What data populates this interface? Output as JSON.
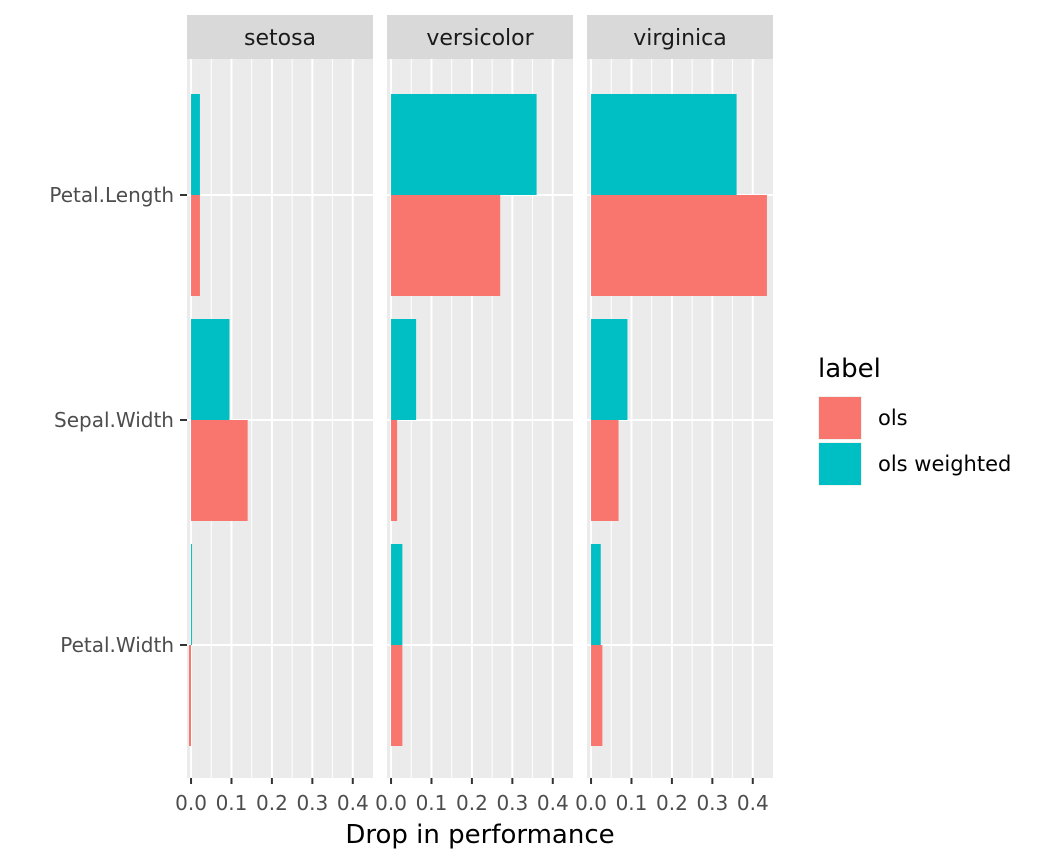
{
  "chart_data": {
    "type": "bar",
    "orientation": "horizontal",
    "facet_variable": "species",
    "facets": [
      "setosa",
      "versicolor",
      "virginica"
    ],
    "categories": [
      "Petal.Length",
      "Sepal.Width",
      "Petal.Width"
    ],
    "xlabel": "Drop in performance",
    "xlim": [
      -0.01,
      0.45
    ],
    "x_ticks": [
      0.0,
      0.1,
      0.2,
      0.3,
      0.4
    ],
    "x_tick_labels": [
      "0.0",
      "0.1",
      "0.2",
      "0.3",
      "0.4"
    ],
    "grid": true,
    "legend": {
      "title": "label",
      "position": "right",
      "entries": [
        {
          "name": "ols",
          "color": "#F8766D"
        },
        {
          "name": "ols weighted",
          "color": "#00BFC4"
        }
      ]
    },
    "series": [
      {
        "name": "ols",
        "color": "#F8766D",
        "values": {
          "setosa": [
            0.022,
            0.14,
            -0.005
          ],
          "versicolor": [
            0.27,
            0.015,
            0.028
          ],
          "virginica": [
            0.435,
            0.068,
            0.028
          ]
        }
      },
      {
        "name": "ols weighted",
        "color": "#00BFC4",
        "values": {
          "setosa": [
            0.022,
            0.095,
            0.002
          ],
          "versicolor": [
            0.36,
            0.062,
            0.028
          ],
          "virginica": [
            0.36,
            0.09,
            0.024
          ]
        }
      }
    ]
  }
}
